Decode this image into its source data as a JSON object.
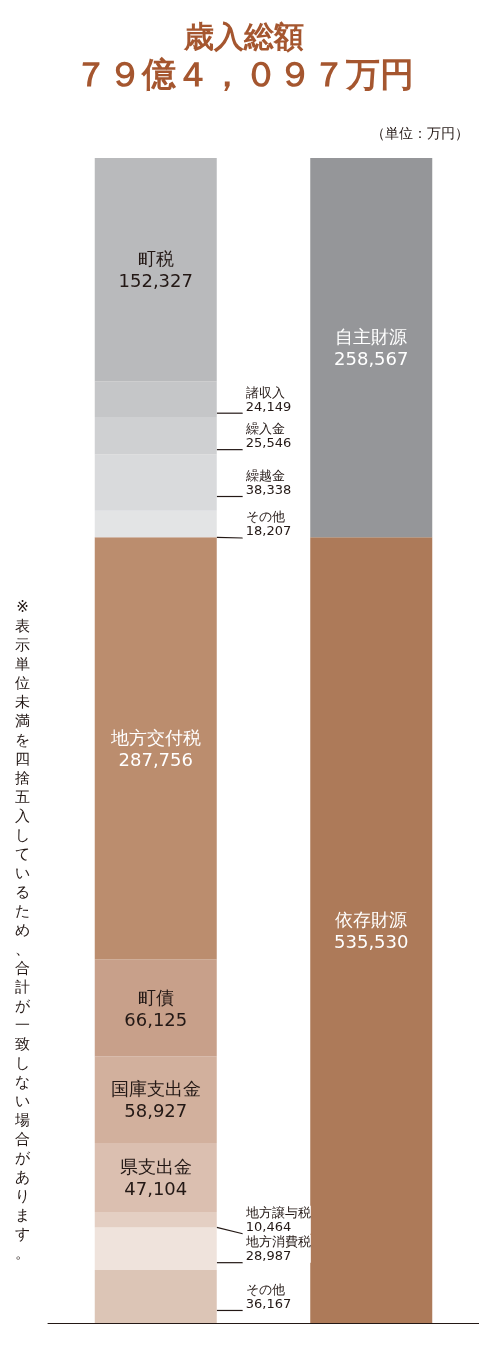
{
  "chart_data": {
    "type": "bar",
    "title": "歳入総額",
    "subtitle": "７９億４，０９７万円",
    "stacked": true,
    "tick_labels": false,
    "categories": [
      null,
      null
    ],
    "annotations": [
      "（単位：万円）",
      "※表示単位未満を四捨五入しているため、合計が一致しない場合があります。"
    ],
    "series": [
      {
        "name": "その他",
        "color": "#dcc5b6",
        "values": [
          36167,
          null
        ],
        "value_labels": [
          "36,167",
          null
        ]
      },
      {
        "name": "地方消費税",
        "color": "#efe3dc",
        "values": [
          28987,
          null
        ],
        "value_labels": [
          "28,987",
          null
        ]
      },
      {
        "name": "地方譲与税",
        "color": "#e4cfc3",
        "values": [
          10464,
          null
        ],
        "value_labels": [
          "10,464",
          null
        ]
      },
      {
        "name": "県支出金",
        "color": "#dbbfb0",
        "values": [
          47104,
          null
        ],
        "value_labels": [
          "47,104",
          null
        ]
      },
      {
        "name": "国庫支出金",
        "color": "#d2b09d",
        "values": [
          58927,
          null
        ],
        "value_labels": [
          "58,927",
          null
        ]
      },
      {
        "name": "町債",
        "color": "#c8a08a",
        "values": [
          66125,
          null
        ],
        "value_labels": [
          "66,125",
          null
        ]
      },
      {
        "name": "地方交付税",
        "color": "#bb8d6e",
        "values": [
          287756,
          null
        ],
        "value_labels": [
          "287,756",
          null
        ]
      },
      {
        "name": "その他",
        "color": "#e3e4e5",
        "values": [
          18207,
          null
        ],
        "value_labels": [
          "18,207",
          null
        ]
      },
      {
        "name": "繰越金",
        "color": "#d9dadc",
        "values": [
          38338,
          null
        ],
        "value_labels": [
          "38,338",
          null
        ]
      },
      {
        "name": "繰入金",
        "color": "#cfd0d2",
        "values": [
          25546,
          null
        ],
        "value_labels": [
          "25,546",
          null
        ]
      },
      {
        "name": "諸収入",
        "color": "#c5c6c8",
        "values": [
          24149,
          null
        ],
        "value_labels": [
          "24,149",
          null
        ]
      },
      {
        "name": "町税",
        "color": "#b9babc",
        "values": [
          152327,
          null
        ],
        "value_labels": [
          "152,327",
          null
        ]
      },
      {
        "name": "依存財源",
        "color": "#ad7a59",
        "values": [
          null,
          535530
        ],
        "value_labels": [
          null,
          "535,530"
        ]
      },
      {
        "name": "自主財源",
        "color": "#959699",
        "values": [
          null,
          258567
        ],
        "value_labels": [
          null,
          "258,567"
        ]
      }
    ]
  }
}
